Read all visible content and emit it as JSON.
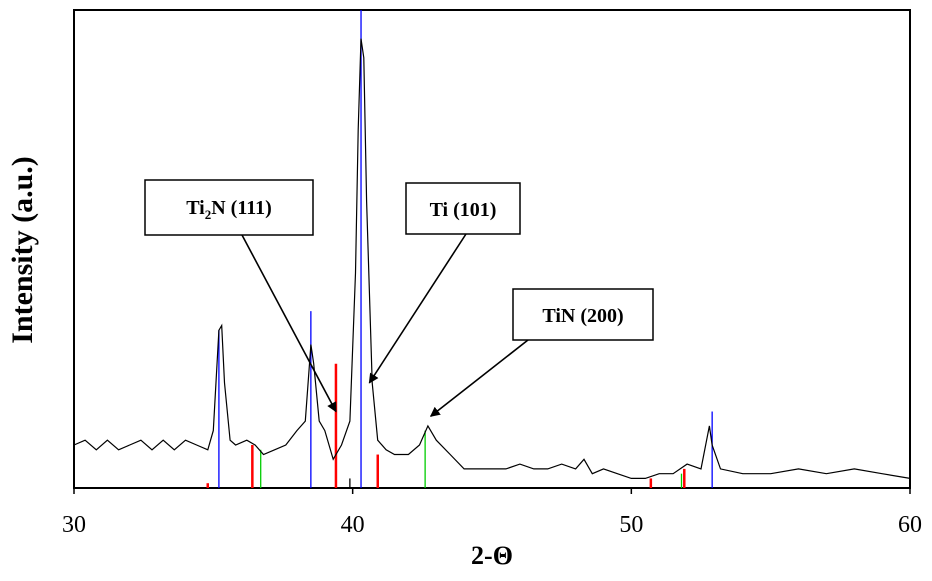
{
  "chart_data": {
    "type": "line",
    "xlabel": "2-Θ",
    "ylabel": "Intensity (a.u.)",
    "xlim": [
      30,
      60
    ],
    "ylim": [
      0,
      100
    ],
    "x_ticks": [
      30,
      40,
      50,
      60
    ],
    "y_ticks_shown": false,
    "grid": false,
    "legend": "none",
    "series": [
      {
        "color": "#000000",
        "points": [
          [
            30.0,
            9
          ],
          [
            30.4,
            10
          ],
          [
            30.8,
            8
          ],
          [
            31.2,
            10
          ],
          [
            31.6,
            8
          ],
          [
            32.0,
            9
          ],
          [
            32.4,
            10
          ],
          [
            32.8,
            8
          ],
          [
            33.2,
            10
          ],
          [
            33.6,
            8
          ],
          [
            34.0,
            10
          ],
          [
            34.4,
            9
          ],
          [
            34.8,
            8
          ],
          [
            35.0,
            12
          ],
          [
            35.2,
            33
          ],
          [
            35.3,
            34
          ],
          [
            35.4,
            22
          ],
          [
            35.6,
            10
          ],
          [
            35.8,
            9
          ],
          [
            36.2,
            10
          ],
          [
            36.5,
            9
          ],
          [
            36.8,
            7
          ],
          [
            37.2,
            8
          ],
          [
            37.6,
            9
          ],
          [
            38.0,
            12
          ],
          [
            38.3,
            14
          ],
          [
            38.5,
            30
          ],
          [
            38.6,
            26
          ],
          [
            38.8,
            14
          ],
          [
            39.0,
            12
          ],
          [
            39.3,
            6
          ],
          [
            39.6,
            9
          ],
          [
            39.9,
            14
          ],
          [
            40.1,
            45
          ],
          [
            40.2,
            75
          ],
          [
            40.3,
            94
          ],
          [
            40.4,
            90
          ],
          [
            40.5,
            60
          ],
          [
            40.7,
            22
          ],
          [
            40.9,
            10
          ],
          [
            41.2,
            8
          ],
          [
            41.5,
            7
          ],
          [
            42.0,
            7
          ],
          [
            42.4,
            9
          ],
          [
            42.7,
            13
          ],
          [
            43.0,
            10
          ],
          [
            43.5,
            7
          ],
          [
            44.0,
            4
          ],
          [
            44.5,
            4
          ],
          [
            45.0,
            4
          ],
          [
            45.5,
            4
          ],
          [
            46.0,
            5
          ],
          [
            46.5,
            4
          ],
          [
            47.0,
            4
          ],
          [
            47.5,
            5
          ],
          [
            48.0,
            4
          ],
          [
            48.3,
            6
          ],
          [
            48.6,
            3
          ],
          [
            49.0,
            4
          ],
          [
            49.5,
            3
          ],
          [
            50.0,
            2
          ],
          [
            50.5,
            2
          ],
          [
            51.0,
            3
          ],
          [
            51.5,
            3
          ],
          [
            52.0,
            5
          ],
          [
            52.5,
            4
          ],
          [
            52.8,
            13
          ],
          [
            52.9,
            9
          ],
          [
            53.2,
            4
          ],
          [
            54.0,
            3
          ],
          [
            55.0,
            3
          ],
          [
            56.0,
            4
          ],
          [
            57.0,
            3
          ],
          [
            58.0,
            4
          ],
          [
            59.0,
            3
          ],
          [
            60.0,
            2
          ]
        ]
      }
    ],
    "reference_lines": [
      {
        "phase_color": "#0000ff",
        "x": 35.2,
        "height": 33
      },
      {
        "phase_color": "#0000ff",
        "x": 38.5,
        "height": 37
      },
      {
        "phase_color": "#0000ff",
        "x": 40.3,
        "height": 100
      },
      {
        "phase_color": "#0000ff",
        "x": 52.9,
        "height": 16
      },
      {
        "phase_color": "#ff0000",
        "x": 36.4,
        "height": 9
      },
      {
        "phase_color": "#ff0000",
        "x": 39.4,
        "height": 26
      },
      {
        "phase_color": "#ff0000",
        "x": 40.9,
        "height": 7
      },
      {
        "phase_color": "#ff0000",
        "x": 34.8,
        "height": 1
      },
      {
        "phase_color": "#ff0000",
        "x": 50.7,
        "height": 2
      },
      {
        "phase_color": "#ff0000",
        "x": 51.9,
        "height": 4
      },
      {
        "phase_color": "#00cc00",
        "x": 36.7,
        "height": 8
      },
      {
        "phase_color": "#00cc00",
        "x": 42.6,
        "height": 12
      },
      {
        "phase_color": "#00cc00",
        "x": 51.8,
        "height": 3
      },
      {
        "phase_color": "#000000",
        "x": 39.9,
        "height": 2
      }
    ],
    "annotations": [
      {
        "label": "Ti",
        "sub": "2",
        "rest": "N (111)",
        "target_x": 39.4,
        "target_y": 16
      },
      {
        "label": "Ti (101)",
        "sub": "",
        "rest": "",
        "target_x": 40.6,
        "target_y": 22
      },
      {
        "label": "TiN (200)",
        "sub": "",
        "rest": "",
        "target_x": 42.8,
        "target_y": 15
      }
    ]
  }
}
